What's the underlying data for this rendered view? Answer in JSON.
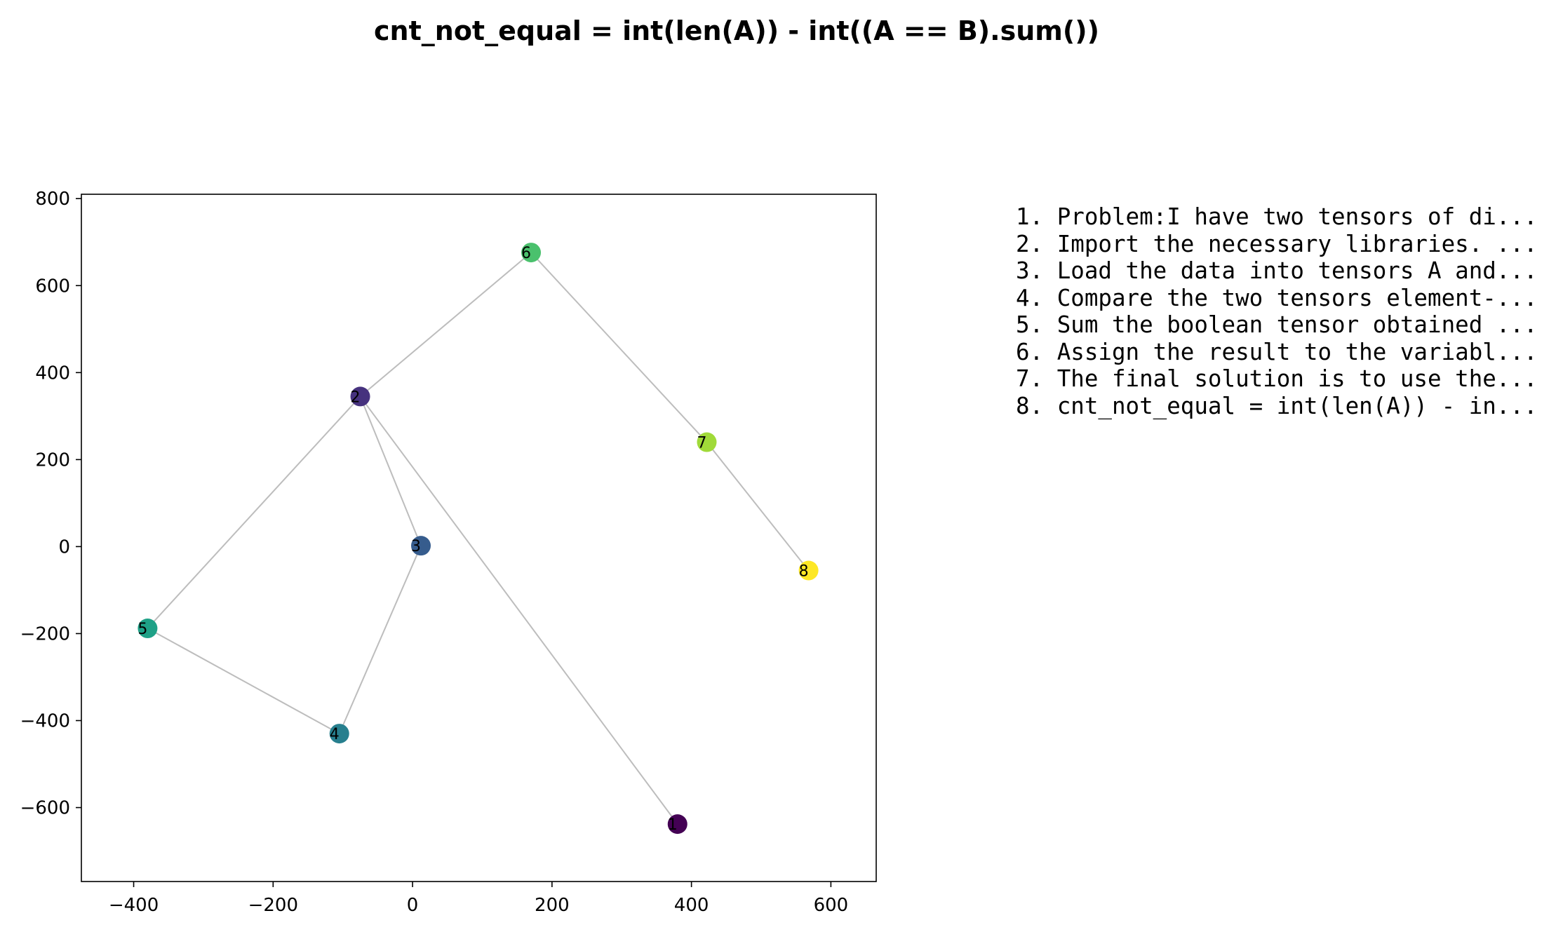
{
  "chart_data": {
    "type": "scatter",
    "title": "cnt_not_equal = int(len(A)) - int((A == B).sum())",
    "xlabel": "",
    "ylabel": "",
    "xlim": [
      -475,
      665
    ],
    "ylim": [
      -770,
      810
    ],
    "xticks": [
      -400,
      -200,
      0,
      200,
      400,
      600
    ],
    "yticks": [
      -600,
      -400,
      -200,
      0,
      200,
      400,
      600,
      800
    ],
    "xtick_labels": [
      "−400",
      "−200",
      "0",
      "200",
      "400",
      "600"
    ],
    "ytick_labels": [
      "−600",
      "−400",
      "−200",
      "0",
      "200",
      "400",
      "600",
      "800"
    ],
    "grid": false,
    "points": [
      {
        "label": "1",
        "x": 380,
        "y": -638,
        "color": "#440154"
      },
      {
        "label": "2",
        "x": -75,
        "y": 345,
        "color": "#46327e"
      },
      {
        "label": "3",
        "x": 12,
        "y": 2,
        "color": "#365c8d"
      },
      {
        "label": "4",
        "x": -105,
        "y": -430,
        "color": "#277f8e"
      },
      {
        "label": "5",
        "x": -380,
        "y": -188,
        "color": "#1fa187"
      },
      {
        "label": "6",
        "x": 170,
        "y": 676,
        "color": "#4ac16d"
      },
      {
        "label": "7",
        "x": 422,
        "y": 240,
        "color": "#a0da39"
      },
      {
        "label": "8",
        "x": 568,
        "y": -55,
        "color": "#fde725"
      }
    ],
    "edges": [
      [
        2,
        6
      ],
      [
        6,
        7
      ],
      [
        7,
        8
      ],
      [
        2,
        5
      ],
      [
        5,
        4
      ],
      [
        4,
        3
      ],
      [
        3,
        2
      ],
      [
        2,
        1
      ]
    ],
    "legend": [
      "1. Problem:I have two tensors of di...",
      "2. Import the necessary libraries. ...",
      "3. Load the data into tensors A and...",
      "4. Compare the two tensors element-...",
      "5. Sum the boolean tensor obtained ...",
      "6. Assign the result to the variabl...",
      "7. The final solution is to use the...",
      "8. cnt_not_equal = int(len(A)) - in..."
    ],
    "legend_placement": "right"
  }
}
